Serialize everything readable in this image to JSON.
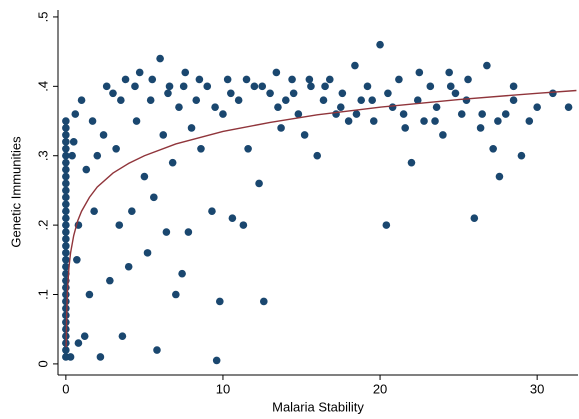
{
  "chart_data": {
    "type": "scatter",
    "x_label": "Malaria Stability",
    "y_label": "Genetic Immunities",
    "xlim": [
      -0.5,
      32.6
    ],
    "ylim": [
      -0.016,
      0.51
    ],
    "xticks": [
      0,
      10,
      20,
      30
    ],
    "yticks": [
      0,
      {
        "value": 0.1,
        "label": ".1"
      },
      {
        "value": 0.2,
        "label": ".2"
      },
      {
        "value": 0.3,
        "label": ".3"
      },
      {
        "value": 0.4,
        "label": ".4"
      },
      {
        "value": 0.5,
        "label": ".5"
      }
    ],
    "series": [
      {
        "type": "scatter",
        "color": "#1a476f",
        "x": [
          0,
          0,
          0,
          0,
          0,
          0,
          0,
          0,
          0,
          0,
          0,
          0,
          0,
          0,
          0,
          0,
          0,
          0,
          0,
          0,
          0,
          0,
          0,
          0,
          0,
          0,
          0,
          0,
          0,
          0,
          0,
          0,
          0,
          0,
          0,
          0.3,
          0.4,
          0.5,
          0.6,
          0.7,
          0.8,
          0.8,
          1.0,
          1.2,
          1.3,
          1.5,
          1.7,
          1.8,
          2.0,
          2.2,
          2.4,
          2.6,
          2.8,
          3.0,
          3.2,
          3.4,
          3.6,
          3.8,
          4.0,
          4.2,
          4.5,
          4.7,
          5.0,
          5.2,
          5.4,
          5.6,
          5.8,
          6.0,
          6.2,
          6.4,
          6.6,
          6.8,
          7.0,
          7.2,
          7.4,
          7.6,
          7.8,
          8.0,
          8.3,
          8.6,
          9.0,
          9.3,
          9.6,
          9.8,
          10.0,
          10.3,
          10.6,
          11.0,
          11.3,
          11.6,
          12.0,
          12.3,
          12.6,
          13.0,
          13.4,
          13.7,
          14.0,
          14.4,
          14.8,
          15.2,
          15.6,
          16.0,
          16.4,
          16.8,
          17.2,
          17.6,
          18.0,
          18.4,
          18.8,
          19.2,
          19.6,
          20.0,
          20.4,
          20.8,
          21.2,
          21.6,
          22.0,
          22.4,
          22.8,
          23.2,
          23.6,
          24.0,
          24.4,
          24.8,
          25.2,
          25.6,
          26.0,
          26.4,
          26.8,
          27.2,
          27.6,
          28.0,
          28.5,
          29.0,
          29.5,
          30.0,
          31.0,
          32.0,
          3.5,
          4.4,
          5.5,
          6.5,
          7.5,
          8.5,
          9.5,
          10.5,
          11.5,
          12.5,
          13.5,
          14.5,
          15.5,
          16.5,
          17.5,
          18.5,
          19.5,
          20.5,
          21.5,
          22.5,
          23.5,
          24.5,
          25.5,
          26.5,
          27.5,
          28.5
        ],
        "values": [
          0.01,
          0.02,
          0.03,
          0.04,
          0.05,
          0.06,
          0.07,
          0.08,
          0.09,
          0.1,
          0.11,
          0.12,
          0.13,
          0.14,
          0.15,
          0.16,
          0.17,
          0.18,
          0.19,
          0.2,
          0.21,
          0.22,
          0.23,
          0.24,
          0.25,
          0.26,
          0.27,
          0.28,
          0.29,
          0.3,
          0.31,
          0.32,
          0.33,
          0.34,
          0.35,
          0.01,
          0.3,
          0.32,
          0.36,
          0.15,
          0.2,
          0.03,
          0.38,
          0.04,
          0.28,
          0.1,
          0.35,
          0.22,
          0.3,
          0.01,
          0.33,
          0.4,
          0.12,
          0.39,
          0.31,
          0.2,
          0.04,
          0.41,
          0.14,
          0.22,
          0.35,
          0.42,
          0.27,
          0.16,
          0.38,
          0.24,
          0.02,
          0.44,
          0.33,
          0.19,
          0.4,
          0.29,
          0.1,
          0.37,
          0.13,
          0.42,
          0.19,
          0.34,
          0.38,
          0.31,
          0.4,
          0.22,
          0.005,
          0.09,
          0.36,
          0.41,
          0.21,
          0.38,
          0.2,
          0.31,
          0.4,
          0.26,
          0.09,
          0.39,
          0.42,
          0.34,
          0.38,
          0.41,
          0.36,
          0.33,
          0.4,
          0.3,
          0.38,
          0.41,
          0.36,
          0.39,
          0.35,
          0.43,
          0.38,
          0.4,
          0.35,
          0.46,
          0.2,
          0.37,
          0.41,
          0.34,
          0.29,
          0.38,
          0.35,
          0.4,
          0.37,
          0.33,
          0.42,
          0.39,
          0.36,
          0.41,
          0.21,
          0.34,
          0.43,
          0.31,
          0.27,
          0.36,
          0.38,
          0.3,
          0.35,
          0.37,
          0.39,
          0.37,
          0.38,
          0.4,
          0.41,
          0.39,
          0.4,
          0.41,
          0.37,
          0.39,
          0.41,
          0.4,
          0.37,
          0.39,
          0.41,
          0.4,
          0.37,
          0.36,
          0.38,
          0.39,
          0.36,
          0.42,
          0.35,
          0.4,
          0.38,
          0.36,
          0.35,
          0.4
        ]
      },
      {
        "type": "line",
        "color": "#90353b",
        "x": [
          0.02,
          0.05,
          0.1,
          0.2,
          0.3,
          0.5,
          0.75,
          1,
          1.5,
          2,
          3,
          4,
          5,
          7,
          10,
          13,
          16,
          20,
          25,
          30,
          32.5
        ],
        "values": [
          0.024,
          0.07,
          0.105,
          0.14,
          0.16,
          0.185,
          0.206,
          0.22,
          0.24,
          0.255,
          0.275,
          0.289,
          0.3,
          0.317,
          0.335,
          0.348,
          0.359,
          0.37,
          0.381,
          0.39,
          0.394
        ]
      }
    ]
  }
}
